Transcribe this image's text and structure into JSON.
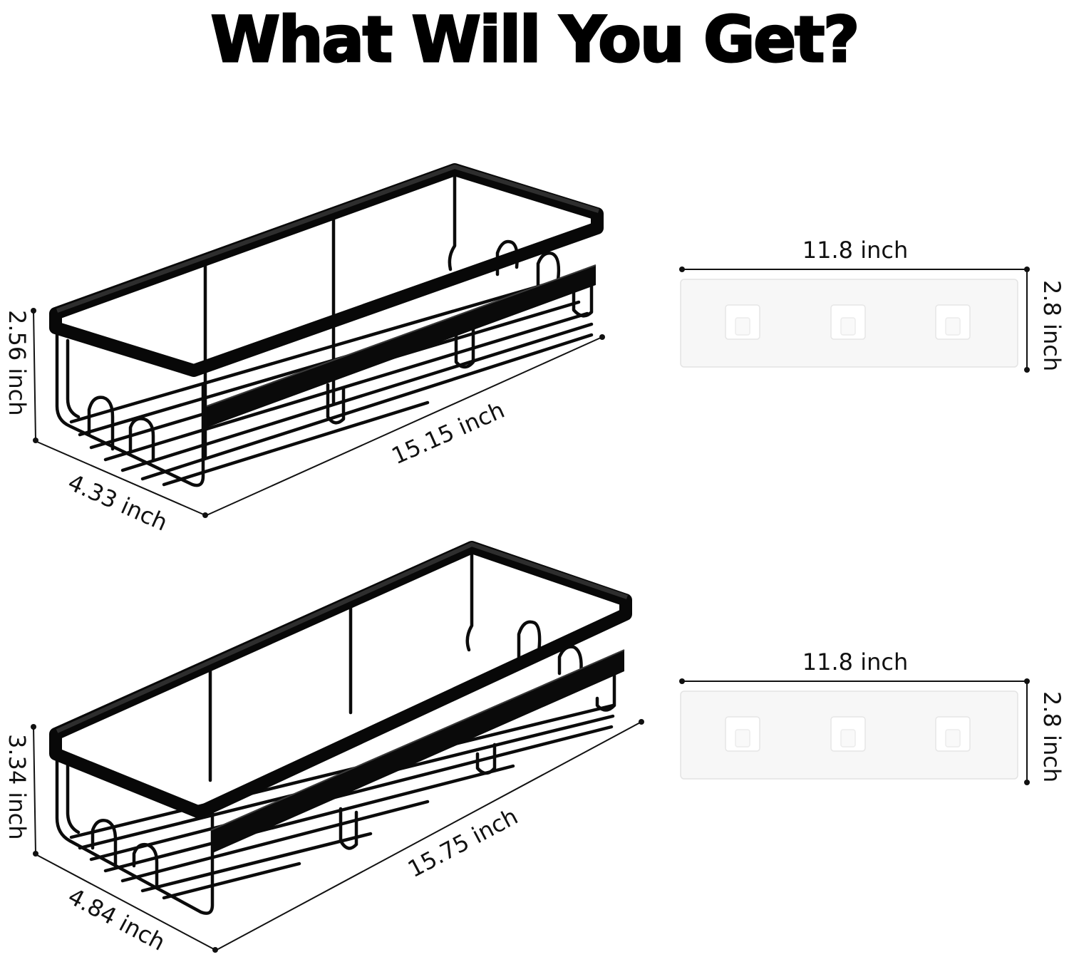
{
  "title": "What Will You Get?",
  "baskets": [
    {
      "height": "2.56 inch",
      "depth": "4.33 inch",
      "length": "15.15 inch"
    },
    {
      "height": "3.34 inch",
      "depth": "4.84 inch",
      "length": "15.75 inch"
    }
  ],
  "adhesive_strips": [
    {
      "width": "11.8 inch",
      "height": "2.8 inch"
    },
    {
      "width": "11.8 inch",
      "height": "2.8 inch"
    }
  ],
  "colors": {
    "text": "#000000",
    "basket": "#0b0b0b",
    "strip": "#f7f7f7",
    "background": "#ffffff"
  }
}
